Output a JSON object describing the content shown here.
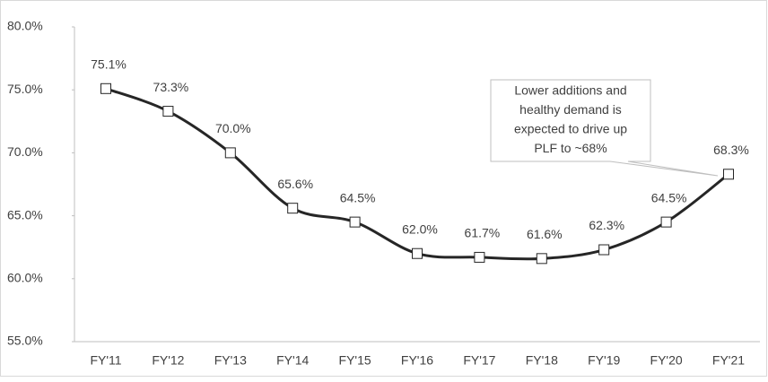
{
  "chart_data": {
    "type": "line",
    "categories": [
      "FY'11",
      "FY'12",
      "FY'13",
      "FY'14",
      "FY'15",
      "FY'16",
      "FY'17",
      "FY'18",
      "FY'19",
      "FY'20",
      "FY'21"
    ],
    "series": [
      {
        "name": "PLF",
        "color": "#262626",
        "values": [
          75.1,
          73.3,
          70.0,
          65.6,
          64.5,
          62.0,
          61.7,
          61.6,
          62.3,
          64.5,
          68.3
        ],
        "value_labels": [
          "75.1%",
          "73.3%",
          "70.0%",
          "65.6%",
          "64.5%",
          "62.0%",
          "61.7%",
          "61.6%",
          "62.3%",
          "64.5%",
          "68.3%"
        ]
      }
    ],
    "ylim": [
      55,
      80
    ],
    "yticks": [
      {
        "value": 55,
        "label": "55.0%"
      },
      {
        "value": 60,
        "label": "60.0%"
      },
      {
        "value": 65,
        "label": "65.0%"
      },
      {
        "value": 70,
        "label": "70.0%"
      },
      {
        "value": 75,
        "label": "75.0%"
      },
      {
        "value": 80,
        "label": "80.0%"
      }
    ],
    "grid": false,
    "annotation": [
      "Lower additions and",
      "healthy demand is",
      "expected to drive up",
      "PLF to ~68%"
    ]
  }
}
